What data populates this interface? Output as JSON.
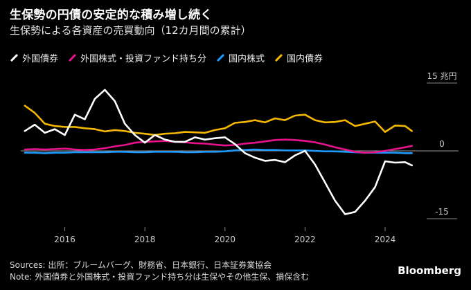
{
  "title": "生保勢の円債の安定的な積み増し続く",
  "subtitle": "生保勢による各資産の売買動向（12カ月間の累計）",
  "footer": {
    "sources": "Sources: 出所：ブルームバーグ、財務省、日本銀行、日本証券業協会",
    "note": "Note: 外国債券と外国株式・投資ファンド持ち分は生保やその他生保、損保含む"
  },
  "brand": "Bloomberg",
  "colors": {
    "foreign_bonds": "#ffffff",
    "foreign_stocks": "#e8128c",
    "domestic_stocks": "#1e9bff",
    "domestic_bonds": "#f5b800",
    "zero_line": "#9a9a9a",
    "tick": "#cccccc"
  },
  "chart_data": {
    "type": "line",
    "title": "生保勢による各資産の売買動向（12カ月間の累計）",
    "ylim": [
      -15,
      15
    ],
    "xlim": [
      2014.9,
      2024.9
    ],
    "y_ticks": [
      {
        "value": 15,
        "label": "15 兆円"
      },
      {
        "value": 0,
        "label": "0"
      },
      {
        "value": -15,
        "label": "-15"
      }
    ],
    "x_ticks": [
      {
        "value": 2016,
        "label": "2016"
      },
      {
        "value": 2018,
        "label": "2018"
      },
      {
        "value": 2020,
        "label": "2020"
      },
      {
        "value": 2022,
        "label": "2022"
      },
      {
        "value": 2024,
        "label": "2024"
      }
    ],
    "x": [
      2015.0,
      2015.25,
      2015.5,
      2015.75,
      2016.0,
      2016.25,
      2016.5,
      2016.75,
      2017.0,
      2017.25,
      2017.5,
      2017.75,
      2018.0,
      2018.25,
      2018.5,
      2018.75,
      2019.0,
      2019.25,
      2019.5,
      2019.75,
      2020.0,
      2020.25,
      2020.5,
      2020.75,
      2021.0,
      2021.25,
      2021.5,
      2021.75,
      2022.0,
      2022.25,
      2022.5,
      2022.75,
      2023.0,
      2023.25,
      2023.5,
      2023.75,
      2024.0,
      2024.25,
      2024.5,
      2024.67
    ],
    "series": [
      {
        "key": "foreign_bonds",
        "name": "外国債券",
        "values": [
          4.4,
          5.8,
          4.0,
          4.8,
          3.5,
          8.0,
          7.0,
          11.5,
          13.5,
          11.0,
          6.0,
          3.5,
          1.8,
          3.5,
          2.5,
          2.0,
          2.0,
          3.0,
          2.5,
          2.8,
          3.0,
          1.5,
          -0.5,
          -1.5,
          -2.2,
          -2.0,
          -2.5,
          -1.0,
          0.0,
          -3.0,
          -7.0,
          -11.0,
          -14.0,
          -13.5,
          -11.0,
          -8.0,
          -2.3,
          -2.6,
          -2.5,
          -3.2
        ]
      },
      {
        "key": "foreign_stocks",
        "name": "外国株式・投資ファンド持ち分",
        "values": [
          0.3,
          0.4,
          0.3,
          0.4,
          0.5,
          0.3,
          0.2,
          0.3,
          0.6,
          1.0,
          1.3,
          1.8,
          2.0,
          2.1,
          2.2,
          2.0,
          1.9,
          1.7,
          1.6,
          1.4,
          1.2,
          1.3,
          1.6,
          1.8,
          2.1,
          2.4,
          2.5,
          2.4,
          2.2,
          1.9,
          1.4,
          0.8,
          0.3,
          -0.2,
          -0.4,
          -0.3,
          0.0,
          0.4,
          0.8,
          1.1
        ]
      },
      {
        "key": "domestic_stocks",
        "name": "国内株式",
        "values": [
          -0.4,
          -0.4,
          -0.5,
          -0.4,
          -0.4,
          -0.3,
          -0.3,
          -0.3,
          -0.3,
          -0.2,
          -0.2,
          -0.3,
          -0.3,
          -0.2,
          -0.2,
          -0.2,
          -0.3,
          -0.3,
          -0.2,
          -0.2,
          -0.1,
          0.1,
          0.2,
          0.3,
          0.2,
          0.2,
          0.1,
          0.1,
          0.1,
          0.0,
          -0.1,
          -0.1,
          -0.2,
          -0.3,
          -0.4,
          -0.4,
          -0.4,
          -0.4,
          -0.5,
          -0.5
        ]
      },
      {
        "key": "domestic_bonds",
        "name": "国内債券",
        "values": [
          10.0,
          8.4,
          6.0,
          5.5,
          5.3,
          5.3,
          5.0,
          4.8,
          4.3,
          4.6,
          4.4,
          4.0,
          3.8,
          3.5,
          3.8,
          3.9,
          4.2,
          4.1,
          4.0,
          4.6,
          5.0,
          6.2,
          6.4,
          6.8,
          6.3,
          7.2,
          6.8,
          7.8,
          8.0,
          6.8,
          6.3,
          6.4,
          6.8,
          5.5,
          6.0,
          6.5,
          4.2,
          5.6,
          5.5,
          4.4
        ]
      }
    ]
  }
}
